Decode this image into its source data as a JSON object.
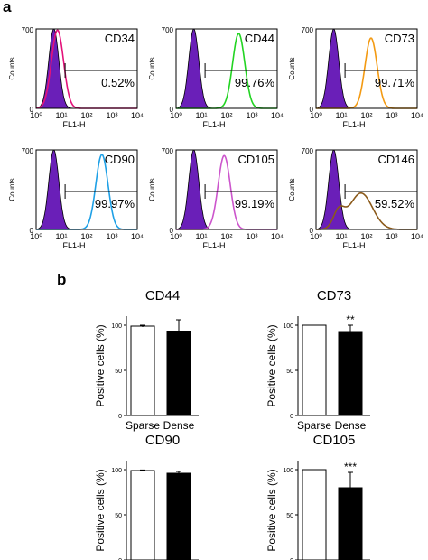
{
  "figure": {
    "panel_a_label": "a",
    "panel_b_label": "b"
  },
  "colors": {
    "isotype_fill": "#6a1fb8",
    "CD34": "#e3127a",
    "CD44": "#22d422",
    "CD73": "#f39a12",
    "CD90": "#1ea0e6",
    "CD105": "#cc55cc",
    "CD146": "#8b5a1b",
    "sparse_bar": "#ffffff",
    "dense_bar": "#000000"
  },
  "chart_data": [
    {
      "type": "area",
      "panel": "a",
      "title": "CD34",
      "xlabel": "FL1-H",
      "ylabel": "Counts",
      "x_scale": "log",
      "xlim": [
        1,
        10000
      ],
      "ylim": [
        0,
        700
      ],
      "yticks": [
        "0",
        "700"
      ],
      "xticks": [
        "10⁰",
        "10¹",
        "10²",
        "10³",
        "10⁴"
      ],
      "gate_percent": "0.52%",
      "series": [
        {
          "role": "isotype",
          "peak_x": 5,
          "peak_y": 700
        },
        {
          "role": "stained",
          "peak_x": 7,
          "peak_y": 690
        }
      ]
    },
    {
      "type": "area",
      "panel": "a",
      "title": "CD44",
      "xlabel": "FL1-H",
      "ylabel": "Counts",
      "x_scale": "log",
      "xlim": [
        1,
        10000
      ],
      "ylim": [
        0,
        700
      ],
      "yticks": [
        "0",
        "700"
      ],
      "xticks": [
        "10⁰",
        "10¹",
        "10²",
        "10³",
        "10⁴"
      ],
      "gate_percent": "99.76%",
      "series": [
        {
          "role": "isotype",
          "peak_x": 5,
          "peak_y": 700
        },
        {
          "role": "stained",
          "peak_x": 300,
          "peak_y": 660
        }
      ]
    },
    {
      "type": "area",
      "panel": "a",
      "title": "CD73",
      "xlabel": "FL1-H",
      "ylabel": "Counts",
      "x_scale": "log",
      "xlim": [
        1,
        10000
      ],
      "ylim": [
        0,
        700
      ],
      "yticks": [
        "0",
        "700"
      ],
      "xticks": [
        "10⁰",
        "10¹",
        "10²",
        "10³",
        "10⁴"
      ],
      "gate_percent": "99.71%",
      "series": [
        {
          "role": "isotype",
          "peak_x": 5,
          "peak_y": 700
        },
        {
          "role": "stained",
          "peak_x": 150,
          "peak_y": 620
        }
      ]
    },
    {
      "type": "area",
      "panel": "a",
      "title": "CD90",
      "xlabel": "FL1-H",
      "ylabel": "Counts",
      "x_scale": "log",
      "xlim": [
        1,
        10000
      ],
      "ylim": [
        0,
        700
      ],
      "yticks": [
        "0",
        "700"
      ],
      "xticks": [
        "10⁰",
        "10¹",
        "10²",
        "10³",
        "10⁴"
      ],
      "gate_percent": "99.97%",
      "series": [
        {
          "role": "isotype",
          "peak_x": 5,
          "peak_y": 700
        },
        {
          "role": "stained",
          "peak_x": 400,
          "peak_y": 660
        }
      ]
    },
    {
      "type": "area",
      "panel": "a",
      "title": "CD105",
      "xlabel": "FL1-H",
      "ylabel": "Counts",
      "x_scale": "log",
      "xlim": [
        1,
        10000
      ],
      "ylim": [
        0,
        700
      ],
      "yticks": [
        "0",
        "700"
      ],
      "xticks": [
        "10⁰",
        "10¹",
        "10²",
        "10³",
        "10⁴"
      ],
      "gate_percent": "99.19%",
      "series": [
        {
          "role": "isotype",
          "peak_x": 5,
          "peak_y": 700
        },
        {
          "role": "stained",
          "peak_x": 80,
          "peak_y": 650
        }
      ]
    },
    {
      "type": "area",
      "panel": "a",
      "title": "CD146",
      "xlabel": "FL1-H",
      "ylabel": "Counts",
      "x_scale": "log",
      "xlim": [
        1,
        10000
      ],
      "ylim": [
        0,
        700
      ],
      "yticks": [
        "0",
        "700"
      ],
      "xticks": [
        "10⁰",
        "10¹",
        "10²",
        "10³",
        "10⁴"
      ],
      "gate_percent": "59.52%",
      "series": [
        {
          "role": "isotype",
          "peak_x": 5,
          "peak_y": 700
        },
        {
          "role": "stained",
          "peak_x": 60,
          "peak_y": 320
        }
      ]
    },
    {
      "type": "bar",
      "panel": "b",
      "title": "CD44",
      "categories": [
        "Sparse",
        "Dense"
      ],
      "values": [
        99,
        93
      ],
      "errors": [
        1,
        13
      ],
      "ylabel": "Positive cells (%)",
      "ylim": [
        0,
        100
      ],
      "yticks": [
        "0",
        "50",
        "100"
      ],
      "significance": [
        "",
        ""
      ]
    },
    {
      "type": "bar",
      "panel": "b",
      "title": "CD73",
      "categories": [
        "Sparse",
        "Dense"
      ],
      "values": [
        100,
        92
      ],
      "errors": [
        0,
        8
      ],
      "ylabel": "Positive cells (%)",
      "ylim": [
        0,
        100
      ],
      "yticks": [
        "0",
        "50",
        "100"
      ],
      "significance": [
        "",
        "**"
      ]
    },
    {
      "type": "bar",
      "panel": "b",
      "title": "CD90",
      "categories": [
        "Sparse",
        "Dense"
      ],
      "values": [
        99,
        96
      ],
      "errors": [
        0.6,
        2
      ],
      "ylabel": "Positive cells (%)",
      "ylim": [
        0,
        100
      ],
      "yticks": [
        "0",
        "50",
        "100"
      ],
      "significance": [
        "",
        ""
      ]
    },
    {
      "type": "bar",
      "panel": "b",
      "title": "CD105",
      "categories": [
        "Sparse",
        "Dense"
      ],
      "values": [
        100,
        80
      ],
      "errors": [
        0,
        17
      ],
      "ylabel": "Positive cells (%)",
      "ylim": [
        0,
        100
      ],
      "yticks": [
        "0",
        "50",
        "100"
      ],
      "significance": [
        "",
        "***"
      ]
    }
  ]
}
